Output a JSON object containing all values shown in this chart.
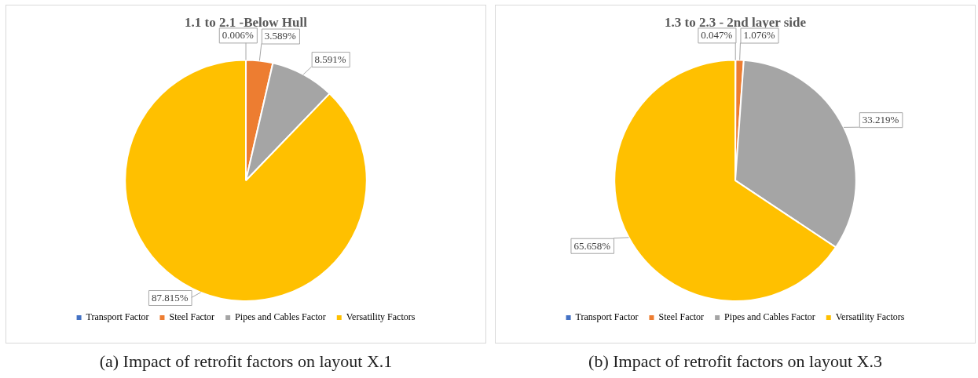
{
  "chart_data": [
    {
      "type": "pie",
      "title": "1.1 to 2.1 -Below Hull",
      "categories": [
        "Transport Factor",
        "Steel Factor",
        "Pipes and Cables Factor",
        "Versatility Factors"
      ],
      "values": [
        0.006,
        3.589,
        8.591,
        87.815
      ],
      "value_labels": [
        "0.006%",
        "3.589%",
        "8.591%",
        "87.815%"
      ],
      "colors": [
        "#4472c4",
        "#ed7d31",
        "#a5a5a5",
        "#ffc000"
      ],
      "legend": "bottom",
      "annotations": [
        "(a) Impact of retrofit factors on layout X.1"
      ]
    },
    {
      "type": "pie",
      "title": "1.3 to 2.3 - 2nd layer side",
      "categories": [
        "Transport Factor",
        "Steel Factor",
        "Pipes and Cables Factor",
        "Versatility Factors"
      ],
      "values": [
        0.047,
        1.076,
        33.219,
        65.658
      ],
      "value_labels": [
        "0.047%",
        "1.076%",
        "33.219%",
        "65.658%"
      ],
      "colors": [
        "#4472c4",
        "#ed7d31",
        "#a5a5a5",
        "#ffc000"
      ],
      "legend": "bottom",
      "annotations": [
        "(b) Impact of retrofit factors on layout X.3"
      ]
    }
  ]
}
